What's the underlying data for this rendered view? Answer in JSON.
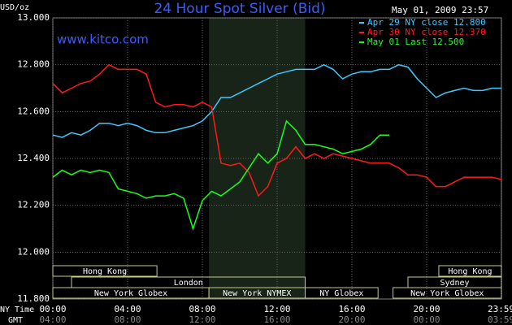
{
  "chart_data": {
    "type": "line",
    "title": "24 Hour Spot Silver (Bid)",
    "timestamp": "May 01, 2009 23:57",
    "y_unit": "USD/oz",
    "watermark": "www.kitco.com",
    "x_axis_labels": [
      "NY Time",
      "GMT"
    ],
    "grid": true,
    "xlim": [
      0,
      24
    ],
    "xticks": [
      {
        "value": 0,
        "label": "00:00"
      },
      {
        "value": 4,
        "label": "04:00"
      },
      {
        "value": 8,
        "label": "08:00"
      },
      {
        "value": 12,
        "label": "12:00"
      },
      {
        "value": 16,
        "label": "16:00"
      },
      {
        "value": 20,
        "label": "20:00"
      },
      {
        "value": 23.983,
        "label": "23:59"
      }
    ],
    "gmt_tick_labels": [
      "04:00",
      "08:00",
      "12:00",
      "16:00",
      "20:00",
      "00:00",
      "03:59"
    ],
    "ylim": [
      11.8,
      13
    ],
    "yticks": [
      {
        "value": 11.8,
        "label": "11.800"
      },
      {
        "value": 12,
        "label": "12.000"
      },
      {
        "value": 12.2,
        "label": "12.200"
      },
      {
        "value": 12.4,
        "label": "12.400"
      },
      {
        "value": 12.6,
        "label": "12.600"
      },
      {
        "value": 12.8,
        "label": "12.800"
      },
      {
        "value": 13,
        "label": "13.000"
      }
    ],
    "sessions": [
      {
        "label": "Hong Kong",
        "start": 0,
        "end": 5.57,
        "row": 0
      },
      {
        "label": "Hong Kong",
        "start": 20.65,
        "end": 24,
        "row": 0
      },
      {
        "label": "London",
        "start": 1,
        "end": 13.5,
        "row": 1
      },
      {
        "label": "Sydney",
        "start": 19,
        "end": 24,
        "row": 1
      },
      {
        "label": "New York Globex",
        "start": 0,
        "end": 8.35,
        "row": 2
      },
      {
        "label": "New York NYMEX",
        "start": 8.35,
        "end": 13.5,
        "row": 2,
        "shade": true
      },
      {
        "label": "NY Globex",
        "start": 13.5,
        "end": 17.4,
        "row": 2
      },
      {
        "label": "New York Globex",
        "start": 18.2,
        "end": 24,
        "row": 2
      }
    ],
    "x": [
      0,
      0.5,
      1,
      1.5,
      2,
      2.5,
      3,
      3.5,
      4,
      4.5,
      5,
      5.5,
      6,
      6.5,
      7,
      7.5,
      8,
      8.5,
      9,
      9.5,
      10,
      10.5,
      11,
      11.5,
      12,
      12.5,
      13,
      13.5,
      14,
      14.5,
      15,
      15.5,
      16,
      16.5,
      17,
      17.5,
      18,
      18.5,
      19,
      19.5,
      20,
      20.5,
      21,
      21.5,
      22,
      22.5,
      23,
      23.5,
      24
    ],
    "series": [
      {
        "name": "Apr 29 NY close 12.800",
        "color": "#40c8ff",
        "values": [
          12.5,
          12.49,
          12.51,
          12.5,
          12.52,
          12.55,
          12.55,
          12.54,
          12.55,
          12.54,
          12.52,
          12.51,
          12.51,
          12.52,
          12.53,
          12.54,
          12.56,
          12.6,
          12.66,
          12.66,
          12.68,
          12.7,
          12.72,
          12.74,
          12.76,
          12.77,
          12.78,
          12.78,
          12.78,
          12.8,
          12.78,
          12.74,
          12.76,
          12.77,
          12.77,
          12.78,
          12.78,
          12.8,
          12.79,
          12.74,
          12.7,
          12.66,
          12.68,
          12.69,
          12.7,
          12.69,
          12.69,
          12.7,
          12.7
        ]
      },
      {
        "name": "Apr 30 NY close 12.370",
        "color": "#ff1a1a",
        "values": [
          12.72,
          12.68,
          12.7,
          12.72,
          12.73,
          12.76,
          12.8,
          12.78,
          12.78,
          12.78,
          12.76,
          12.64,
          12.62,
          12.63,
          12.63,
          12.62,
          12.64,
          12.62,
          12.38,
          12.37,
          12.38,
          12.34,
          12.24,
          12.28,
          12.38,
          12.4,
          12.45,
          12.4,
          12.42,
          12.4,
          12.42,
          12.41,
          12.4,
          12.39,
          12.38,
          12.38,
          12.38,
          12.36,
          12.33,
          12.33,
          12.32,
          12.28,
          12.28,
          12.3,
          12.32,
          12.32,
          12.32,
          12.32,
          12.31
        ]
      },
      {
        "name": "May 01 Last 12.500",
        "color": "#1aff1a",
        "values": [
          12.32,
          12.35,
          12.33,
          12.35,
          12.34,
          12.35,
          12.34,
          12.27,
          12.26,
          12.25,
          12.23,
          12.24,
          12.24,
          12.25,
          12.23,
          12.1,
          12.22,
          12.26,
          12.24,
          12.27,
          12.3,
          12.36,
          12.42,
          12.38,
          12.42,
          12.56,
          12.52,
          12.46,
          12.46,
          12.45,
          12.44,
          12.42,
          12.43,
          12.44,
          12.46,
          12.5,
          12.5,
          null,
          null,
          null,
          null,
          null,
          null,
          null,
          null,
          null,
          null,
          null,
          null
        ]
      }
    ]
  }
}
